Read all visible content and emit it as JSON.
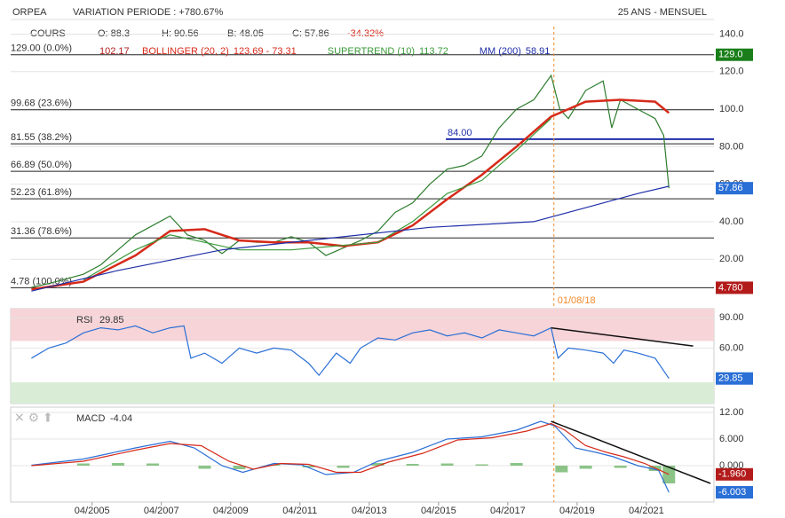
{
  "header": {
    "symbol": "ORPEA",
    "variation": "VARIATION PERIODE : +780.67%",
    "period": "25 ANS - MENSUEL"
  },
  "legend": {
    "cours": "COURS",
    "open": "O: 88.3",
    "high": "H: 90.56",
    "low": "B: 48.05",
    "close": "C: 57.86",
    "change": "-34.32%",
    "overlap": "102.17"
  },
  "chart_data": [
    {
      "type": "line",
      "panel": "price",
      "xlim": [
        2002.9,
        2023.2
      ],
      "ylim": [
        -4,
        144
      ],
      "yticks": [
        {
          "value": 140,
          "label": "140.0"
        },
        {
          "value": 120,
          "label": "120.0"
        },
        {
          "value": 100,
          "label": "100.0"
        },
        {
          "value": 80,
          "label": "80.00"
        },
        {
          "value": 60,
          "label": "60.00"
        },
        {
          "value": 40,
          "label": "40.00"
        },
        {
          "value": 20,
          "label": "20.00"
        }
      ],
      "xticks": [
        {
          "value": 2005.25,
          "label": "04/2005"
        },
        {
          "value": 2007.25,
          "label": "04/2007"
        },
        {
          "value": 2009.25,
          "label": "04/2009"
        },
        {
          "value": 2011.25,
          "label": "04/2011"
        },
        {
          "value": 2013.25,
          "label": "04/2013"
        },
        {
          "value": 2015.25,
          "label": "04/2015"
        },
        {
          "value": 2017.25,
          "label": "04/2017"
        },
        {
          "value": 2019.25,
          "label": "04/2019"
        },
        {
          "value": 2021.25,
          "label": "04/2021"
        }
      ],
      "series": [
        {
          "name": "COURS",
          "color": "#2f7d2f",
          "x": [
            2003.5,
            2004,
            2005,
            2005.5,
            2006,
            2006.5,
            2007,
            2007.5,
            2008,
            2008.5,
            2009,
            2009.5,
            2010,
            2010.5,
            2011,
            2011.5,
            2012,
            2012.5,
            2013,
            2013.5,
            2014,
            2014.5,
            2015,
            2015.5,
            2016,
            2016.5,
            2017,
            2017.5,
            2018,
            2018.5,
            2018.75,
            2019,
            2019.5,
            2020,
            2020.25,
            2020.5,
            2021,
            2021.5,
            2021.75,
            2021.9
          ],
          "values": [
            5,
            7,
            12,
            17,
            25,
            33,
            38,
            43,
            33,
            30,
            23,
            30,
            29,
            29,
            32,
            29,
            22,
            26,
            30,
            35,
            45,
            50,
            60,
            68,
            70,
            75,
            90,
            100,
            105,
            118,
            100,
            95,
            110,
            115,
            90,
            105,
            100,
            95,
            86,
            57.86
          ]
        },
        {
          "name": "BOLLINGER (20, 2)",
          "legend_value": "123.69 - 73.31",
          "color": "#d62a1a",
          "x": [
            2003.5,
            2005,
            2006.5,
            2007.5,
            2008.5,
            2009.5,
            2010.5,
            2011.5,
            2012.5,
            2013.5,
            2014.5,
            2015.5,
            2016.5,
            2017.5,
            2018.5,
            2019.5,
            2020.5,
            2021.5,
            2021.9
          ],
          "values": [
            4,
            8,
            22,
            35,
            36,
            30,
            29,
            29,
            27,
            29,
            38,
            52,
            65,
            80,
            96,
            104,
            105,
            104,
            98
          ]
        },
        {
          "name": "SUPERTREND (10)",
          "legend_value": "113.72",
          "color": "#3a9a3a",
          "x": [
            2005,
            2006.5,
            2007.5,
            2009.5,
            2011,
            2013.5,
            2014.5,
            2015.5,
            2016.5,
            2017.5,
            2018.5
          ],
          "values": [
            9,
            25,
            33,
            25,
            25,
            29,
            40,
            55,
            62,
            78,
            95
          ]
        },
        {
          "name": "MM (200)",
          "legend_value": "58.91",
          "color": "#1f2fa8",
          "x": [
            2003.5,
            2006,
            2009,
            2012,
            2015,
            2018,
            2019,
            2021,
            2021.9
          ],
          "values": [
            3,
            14,
            25,
            31,
            37,
            40,
            45,
            55,
            58.91
          ]
        }
      ],
      "levels": [
        {
          "label": "129.00 (0.0%)",
          "value": 129
        },
        {
          "label": "99.68 (23.6%)",
          "value": 99.68
        },
        {
          "label": "81.55 (38.2%)",
          "value": 81.55
        },
        {
          "label": "66.89 (50.0%)",
          "value": 66.89
        },
        {
          "label": "52.23 (61.8%)",
          "value": 52.23
        },
        {
          "label": "31.36 (78.6%)",
          "value": 31.36
        },
        {
          "label": "4.78 (100.0%)",
          "value": 4.78
        }
      ],
      "support": {
        "label": "84.00",
        "value": 84
      },
      "marker": {
        "x": 2018.58,
        "label": "01/08/18"
      },
      "badges": [
        {
          "value": 129,
          "label": "129.0",
          "color": "#1a7f1a"
        },
        {
          "value": 57.86,
          "label": "57.86",
          "color": "#2a6fd6"
        },
        {
          "value": 4.78,
          "label": "4.780",
          "color": "#b31b1b"
        }
      ]
    },
    {
      "type": "line",
      "panel": "rsi",
      "title": "RSI",
      "title_value": "29.85",
      "xlim": [
        2002.9,
        2023.2
      ],
      "ylim": [
        5,
        99
      ],
      "yticks": [
        {
          "value": 90,
          "label": "90.00"
        },
        {
          "value": 60,
          "label": "60.00"
        }
      ],
      "zones": [
        {
          "from": 67,
          "to": 99,
          "color": "#f7d4d8"
        },
        {
          "from": 5,
          "to": 26,
          "color": "#d8ecd6"
        }
      ],
      "series": [
        {
          "color": "#2a6fd6",
          "x": [
            2003.5,
            2004,
            2004.5,
            2005,
            2005.5,
            2006,
            2006.5,
            2007,
            2007.5,
            2007.9,
            2008.1,
            2008.5,
            2009,
            2009.5,
            2010,
            2010.5,
            2011,
            2011.5,
            2011.8,
            2012.3,
            2012.7,
            2013,
            2013.5,
            2014,
            2014.5,
            2015,
            2015.5,
            2016,
            2016.5,
            2017,
            2017.5,
            2018,
            2018.5,
            2018.7,
            2019,
            2019.5,
            2020,
            2020.3,
            2020.6,
            2021,
            2021.5,
            2021.9
          ],
          "values": [
            50,
            60,
            65,
            75,
            80,
            78,
            82,
            75,
            80,
            82,
            50,
            55,
            45,
            60,
            55,
            60,
            58,
            45,
            33,
            55,
            45,
            60,
            70,
            68,
            75,
            78,
            72,
            75,
            70,
            78,
            75,
            72,
            80,
            50,
            60,
            58,
            55,
            45,
            58,
            55,
            50,
            29.85
          ]
        }
      ],
      "trendline": {
        "x": [
          2018.5,
          2022.6
        ],
        "values": [
          80,
          62
        ]
      },
      "badges": [
        {
          "value": 29.85,
          "label": "29.85",
          "color": "#2a6fd6"
        }
      ]
    },
    {
      "type": "line",
      "panel": "macd",
      "title": "MACD",
      "title_value": "-4.04",
      "xlim": [
        2002.9,
        2023.2
      ],
      "ylim": [
        -8.2,
        13.2
      ],
      "yticks": [
        {
          "value": 12,
          "label": "12.00"
        },
        {
          "value": 6,
          "label": "6.000"
        },
        {
          "value": 0,
          "label": "0.000"
        }
      ],
      "series": [
        {
          "color": "#2a6fd6",
          "x": [
            2003.5,
            2005,
            2006.5,
            2007.5,
            2008.2,
            2009,
            2009.6,
            2010.5,
            2011.3,
            2012,
            2012.8,
            2013.5,
            2014.5,
            2015.5,
            2016.5,
            2017.5,
            2018.2,
            2018.6,
            2019.2,
            2019.8,
            2020.3,
            2021,
            2021.6,
            2021.9
          ],
          "values": [
            0.1,
            1.5,
            4,
            5.5,
            4,
            0,
            -1.5,
            0.5,
            0.2,
            -2,
            -1.5,
            1,
            3,
            6,
            6.5,
            8,
            10,
            9,
            4,
            3,
            2,
            0,
            -1,
            -6.003
          ]
        },
        {
          "color": "#d62a1a",
          "x": [
            2003.5,
            2005,
            2006.5,
            2007.5,
            2008.4,
            2009.2,
            2009.9,
            2010.7,
            2011.5,
            2012.3,
            2013,
            2013.8,
            2014.8,
            2015.8,
            2016.8,
            2017.8,
            2018.5,
            2018.9,
            2019.5,
            2020.1,
            2020.6,
            2021.2,
            2021.9
          ],
          "values": [
            0,
            1,
            3.5,
            5,
            4.5,
            1,
            -0.8,
            0.5,
            0.3,
            -1.5,
            -1.5,
            0.8,
            2.8,
            5.8,
            6.3,
            7.8,
            9.5,
            8,
            4.5,
            3,
            2,
            0.5,
            -1.96
          ]
        }
      ],
      "histogram": {
        "color": "#6fb56a",
        "x": [
          2005,
          2006,
          2007,
          2008.5,
          2009.5,
          2010.5,
          2011.5,
          2012.5,
          2013.5,
          2014.5,
          2015.5,
          2016.5,
          2017.5,
          2018.8,
          2019.5,
          2020.5,
          2021.5,
          2021.9
        ],
        "values": [
          0.5,
          0.6,
          0.5,
          -0.7,
          -0.8,
          0.3,
          -0.4,
          -0.5,
          0.6,
          0.4,
          0.5,
          0.3,
          0.6,
          -1.5,
          -0.7,
          -0.5,
          -1.2,
          -4
        ]
      },
      "trendline": {
        "x": [
          2018.5,
          2023.1
        ],
        "values": [
          10,
          -4
        ]
      },
      "badges": [
        {
          "value": -1.96,
          "label": "-1.960",
          "color": "#b31b1b"
        },
        {
          "value": -6.003,
          "label": "-6.003",
          "color": "#2a6fd6"
        }
      ]
    }
  ]
}
